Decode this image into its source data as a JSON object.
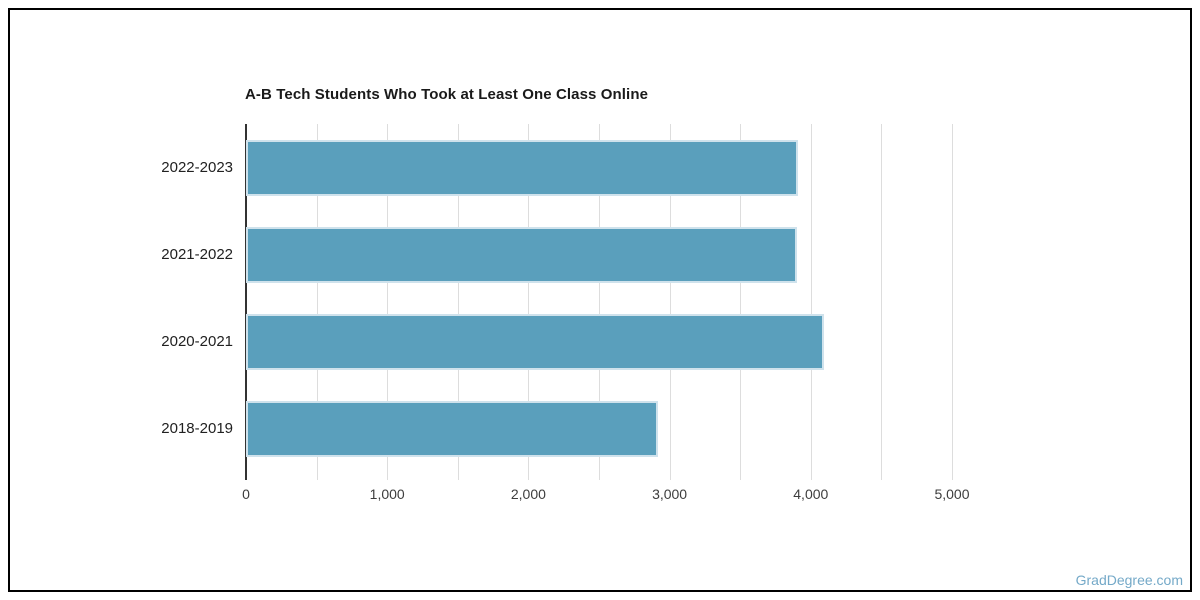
{
  "frame": {
    "border_color": "#000000",
    "background": "#ffffff"
  },
  "chart_data": {
    "type": "bar",
    "orientation": "horizontal",
    "title": "A-B Tech Students Who Took at Least One Class Online",
    "categories": [
      "2022-2023",
      "2021-2022",
      "2020-2021",
      "2018-2019"
    ],
    "values": [
      3910,
      3900,
      4095,
      2920
    ],
    "xlabel": "",
    "ylabel": "",
    "xlim": [
      0,
      5000
    ],
    "x_major_tick_step": 1000,
    "grid_step": 500,
    "x_tick_labels": [
      "0",
      "1,000",
      "2,000",
      "3,000",
      "4,000",
      "5,000"
    ],
    "grid": "on",
    "legend": "none",
    "bar_color": "#5a9fbc",
    "bar_stroke_color": "#cfe2ec",
    "grid_color": "#dddddd",
    "axis_color": "#333333",
    "title_color": "#1a1a1a",
    "label_color": "#212121"
  },
  "watermark": {
    "text": "GradDegree.com",
    "color": "#74a9c8"
  }
}
